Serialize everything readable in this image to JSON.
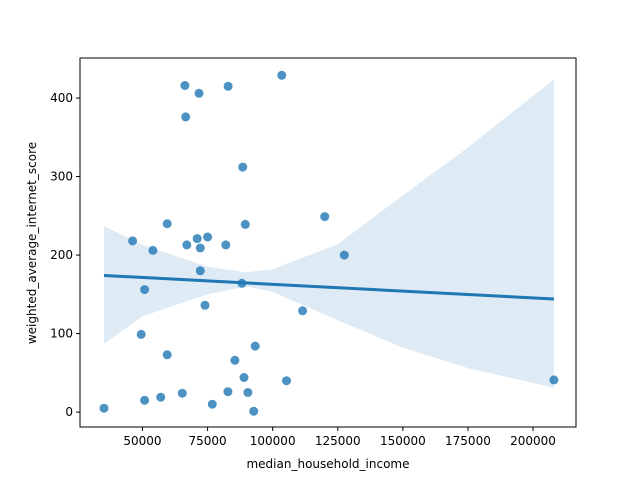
{
  "chart_data": {
    "type": "scatter",
    "xlabel": "median_household_income",
    "ylabel": "weighted_average_internet_score",
    "xlim": [
      26000,
      216500
    ],
    "ylim": [
      -19,
      451
    ],
    "x_ticks": [
      50000,
      75000,
      100000,
      125000,
      150000,
      175000,
      200000
    ],
    "y_ticks": [
      0,
      100,
      200,
      300,
      400
    ],
    "grid": false,
    "points": [
      {
        "x": 35200,
        "y": 5
      },
      {
        "x": 46200,
        "y": 218
      },
      {
        "x": 49500,
        "y": 99
      },
      {
        "x": 50800,
        "y": 156
      },
      {
        "x": 50800,
        "y": 15
      },
      {
        "x": 54000,
        "y": 206
      },
      {
        "x": 57000,
        "y": 19
      },
      {
        "x": 59500,
        "y": 240
      },
      {
        "x": 59500,
        "y": 73
      },
      {
        "x": 65300,
        "y": 24
      },
      {
        "x": 66300,
        "y": 416
      },
      {
        "x": 66600,
        "y": 376
      },
      {
        "x": 67000,
        "y": 213
      },
      {
        "x": 71000,
        "y": 221
      },
      {
        "x": 71700,
        "y": 406
      },
      {
        "x": 72200,
        "y": 180
      },
      {
        "x": 72200,
        "y": 209
      },
      {
        "x": 74000,
        "y": 136
      },
      {
        "x": 75000,
        "y": 223
      },
      {
        "x": 76800,
        "y": 10
      },
      {
        "x": 82000,
        "y": 213
      },
      {
        "x": 82800,
        "y": 26
      },
      {
        "x": 82900,
        "y": 415
      },
      {
        "x": 85500,
        "y": 66
      },
      {
        "x": 88200,
        "y": 164
      },
      {
        "x": 88500,
        "y": 312
      },
      {
        "x": 89000,
        "y": 44
      },
      {
        "x": 89500,
        "y": 239
      },
      {
        "x": 90500,
        "y": 25
      },
      {
        "x": 92700,
        "y": 1
      },
      {
        "x": 93300,
        "y": 84
      },
      {
        "x": 103500,
        "y": 429
      },
      {
        "x": 105300,
        "y": 40
      },
      {
        "x": 111500,
        "y": 129
      },
      {
        "x": 120000,
        "y": 249
      },
      {
        "x": 127500,
        "y": 200
      },
      {
        "x": 208000,
        "y": 41
      }
    ],
    "regression": {
      "x": [
        35200,
        208000
      ],
      "y": [
        174,
        144
      ]
    },
    "confidence_band": {
      "x": [
        35200,
        50000,
        75000,
        90000,
        100000,
        125000,
        150000,
        175000,
        208000
      ],
      "upper": [
        237,
        213,
        185,
        178,
        182,
        214,
        276,
        337,
        424
      ],
      "lower": [
        87,
        122,
        150,
        160,
        153,
        117,
        82,
        56,
        31
      ]
    },
    "colors": {
      "points": "#1f77b4",
      "line": "#1f77b4",
      "band": "#1f77b4"
    }
  }
}
